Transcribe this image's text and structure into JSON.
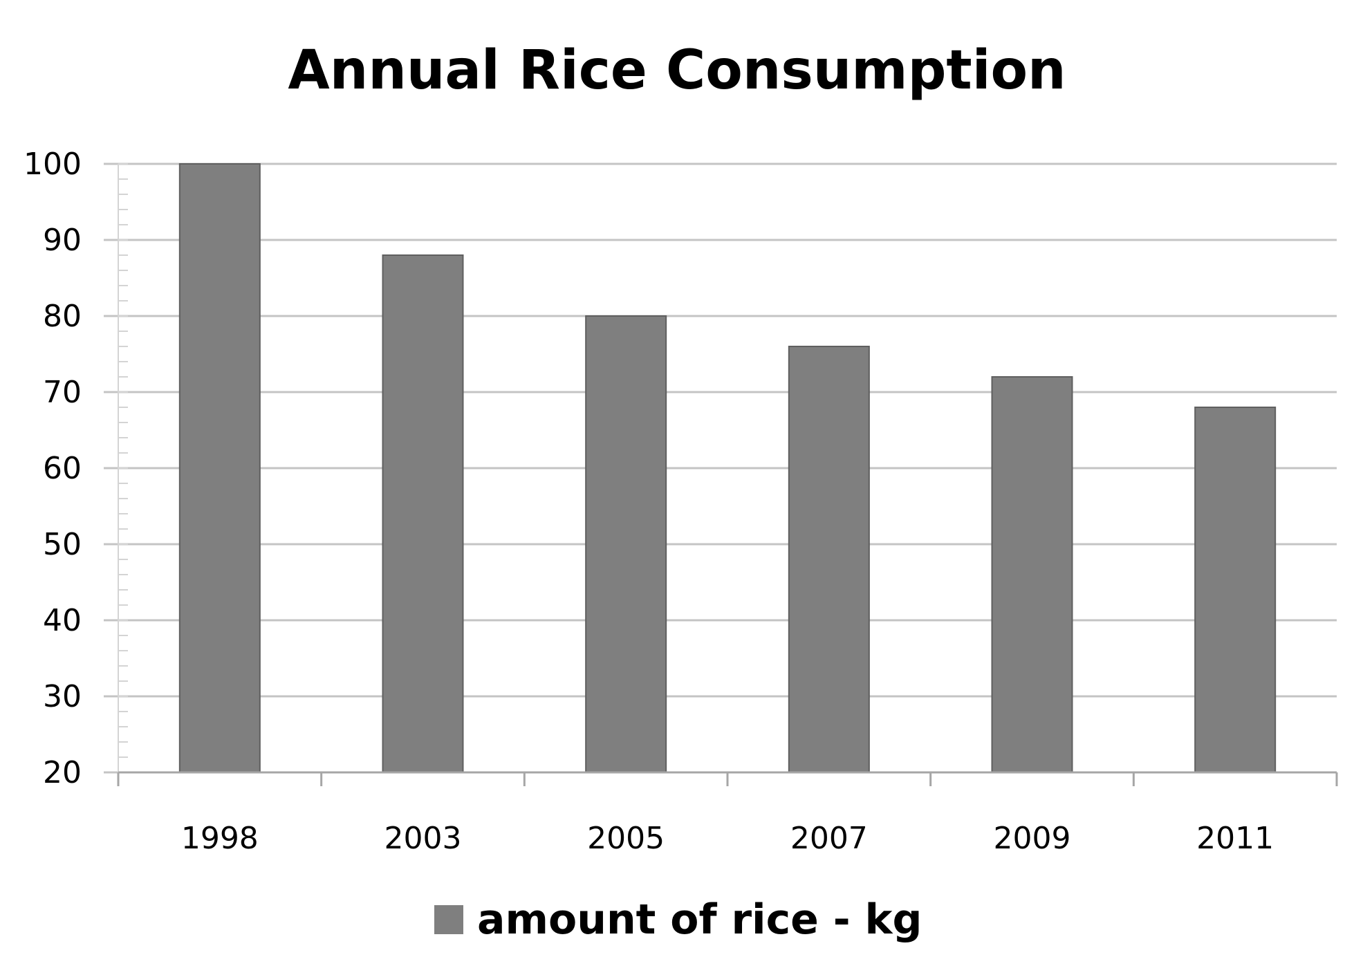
{
  "chart_data": {
    "type": "bar",
    "title": "Annual Rice Consumption",
    "xlabel": "",
    "ylabel": "",
    "categories": [
      "1998",
      "2003",
      "2005",
      "2007",
      "2009",
      "2011"
    ],
    "series": [
      {
        "name": "amount of rice - kg",
        "values": [
          100,
          88,
          80,
          76,
          72,
          68
        ],
        "color": "#7f7f7f"
      }
    ],
    "ylim": [
      20,
      100
    ],
    "yticks": [
      20,
      30,
      40,
      50,
      60,
      70,
      80,
      90,
      100
    ],
    "grid": true,
    "legend_position": "bottom",
    "colors": {
      "bar": "#7f7f7f",
      "bar_edge": "#5f5f5f",
      "gridline": "#c4c4c4",
      "axis": "#a6a6a6"
    }
  }
}
